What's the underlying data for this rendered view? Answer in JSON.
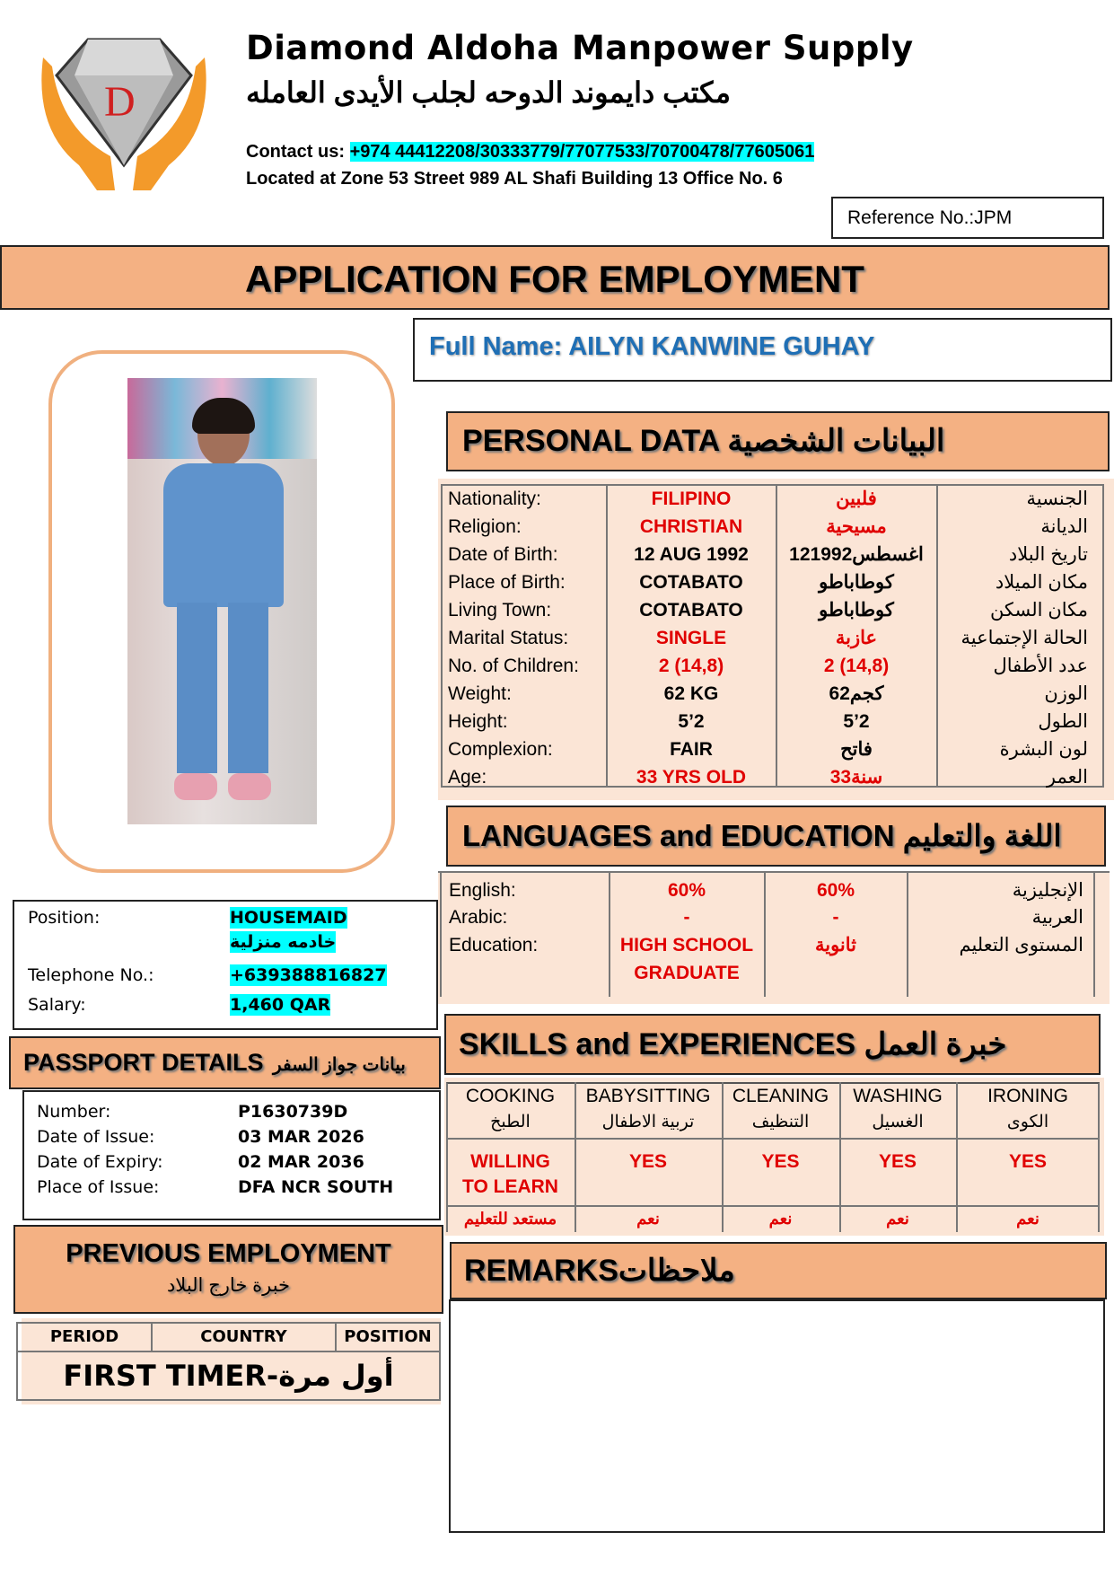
{
  "company": {
    "name_en": "Diamond Aldoha Manpower Supply",
    "name_ar": "مكتب دايموند الدوحه لجلب الأيدى العامله",
    "contact_label": "Contact us:",
    "contact_numbers": "+974 44412208/30333779/77077533/70700478/77605061",
    "address": "Located at Zone 53 Street 989 AL Shafi Building 13 Office No. 6",
    "logo_letters": "DD"
  },
  "reference": "Reference No.:JPM",
  "title": "APPLICATION FOR EMPLOYMENT",
  "full_name": "Full Name: AILYN KANWINE GUHAY",
  "colors": {
    "header": "#f4b183",
    "panel": "#fbe5d6",
    "highlight": "#00ffff",
    "red": "#e00000",
    "name_blue": "#1f6fb5"
  },
  "personal": {
    "heading": "PERSONAL DATA البيانات الشخصية",
    "rows": [
      {
        "label": "Nationality:",
        "value": "FILIPINO",
        "value_ar": "فلبين",
        "label_ar": "الجنسية"
      },
      {
        "label": "Religion:",
        "value": "CHRISTIAN",
        "value_ar": "مسيحية",
        "label_ar": "الديانة"
      },
      {
        "label": "Date of Birth:",
        "value": "12 AUG 1992",
        "value_ar": "12اغسطس1992",
        "label_ar": "تاريخ البلاد"
      },
      {
        "label": "Place of Birth:",
        "value": "COTABATO",
        "value_ar": "كوطاباطو",
        "label_ar": "مكان الميلاد"
      },
      {
        "label": "Living Town:",
        "value": "COTABATO",
        "value_ar": "كوطاباطو",
        "label_ar": "مكان السكن"
      },
      {
        "label": "Marital Status:",
        "value": "SINGLE",
        "value_ar": "عازبة",
        "label_ar": "الحالة الإجتماعية"
      },
      {
        "label": "No. of Children:",
        "value": "2 (14,8)",
        "value_ar": "2 (14,8)",
        "label_ar": "عدد الأطفال"
      },
      {
        "label": "Weight:",
        "value": "62 KG",
        "value_ar": "62كجم",
        "label_ar": "الوزن"
      },
      {
        "label": "Height:",
        "value": "5’2",
        "value_ar": "5’2",
        "label_ar": "الطول"
      },
      {
        "label": "Complexion:",
        "value": "FAIR",
        "value_ar": "فاتح",
        "label_ar": "لون البشرة"
      },
      {
        "label": "Age:",
        "value": "33 YRS OLD",
        "value_ar": "33سنة",
        "label_ar": "العمر"
      }
    ]
  },
  "languages": {
    "heading": "LANGUAGES and EDUCATION اللغة والتعليم",
    "rows": [
      {
        "label": "English:",
        "value": "60%",
        "value_ar": "60%",
        "label_ar": "الإنجليزية"
      },
      {
        "label": "Arabic:",
        "value": "-",
        "value_ar": "-",
        "label_ar": "العربية"
      },
      {
        "label": "Education:",
        "value": "HIGH SCHOOL",
        "value2": "GRADUATE",
        "value_ar": "ثانوية",
        "label_ar": "المستوى التعليم"
      }
    ]
  },
  "job": {
    "position_label": "Position:",
    "position": "HOUSEMAID",
    "position_ar": "خادمه منزلية",
    "phone_label": "Telephone No.:",
    "phone": "+639388816827",
    "salary_label": "Salary:",
    "salary": "1,460 QAR"
  },
  "passport": {
    "heading": "PASSPORT DETAILS",
    "heading_ar": "بيانات جواز السفر",
    "rows": [
      {
        "label": "Number:",
        "value": "P1630739D"
      },
      {
        "label": "Date of Issue:",
        "value": "03 MAR 2026"
      },
      {
        "label": "Date of Expiry:",
        "value": "02 MAR 2036"
      },
      {
        "label": "Place of Issue:",
        "value": "DFA NCR SOUTH"
      }
    ]
  },
  "previous": {
    "heading": "PREVIOUS EMPLOYMENT",
    "heading_ar": "خبرة خارج البلاد",
    "columns": [
      "PERIOD",
      "COUNTRY",
      "POSITION"
    ],
    "value": "FIRST TIMER-أول مرة"
  },
  "skills": {
    "heading": "SKILLS and EXPERIENCES خبرة العمل",
    "items": [
      {
        "name": "COOKING",
        "name_ar": "الطبخ",
        "value": "WILLING",
        "value2": "TO LEARN",
        "value_ar": "مستعد للتعليم"
      },
      {
        "name": "BABYSITTING",
        "name_ar": "تربية الاطفال",
        "value": "YES",
        "value_ar": "نعم"
      },
      {
        "name": "CLEANING",
        "name_ar": "التنظيف",
        "value": "YES",
        "value_ar": "نعم"
      },
      {
        "name": "WASHING",
        "name_ar": "الغسيل",
        "value": "YES",
        "value_ar": "نعم"
      },
      {
        "name": "IRONING",
        "name_ar": "الكوى",
        "value": "YES",
        "value_ar": "نعم"
      }
    ]
  },
  "remarks": {
    "heading": "REMARKSملاحظات"
  }
}
